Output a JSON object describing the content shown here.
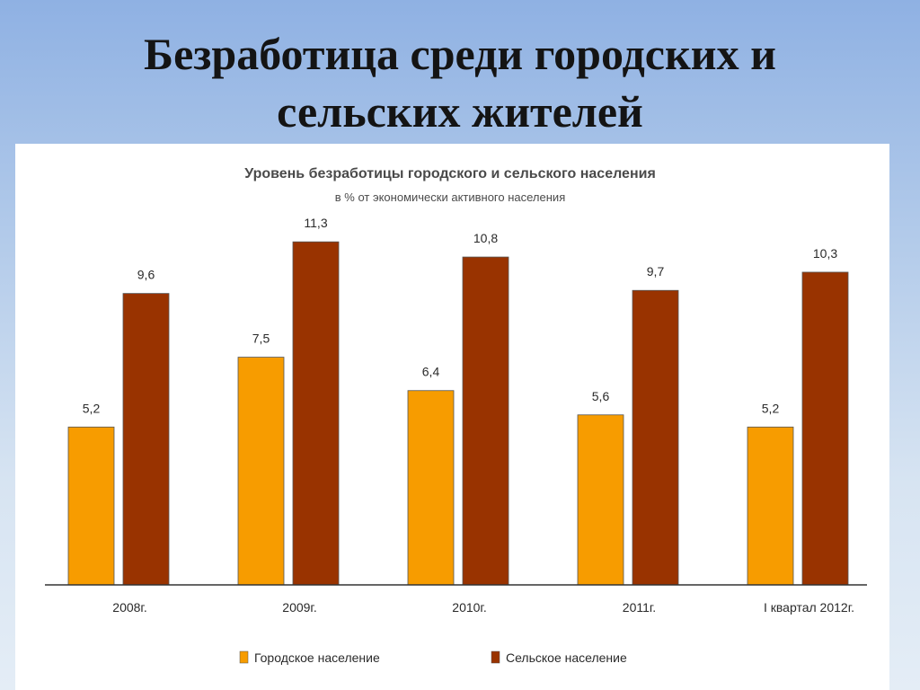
{
  "slide": {
    "title_line1": "Безработица среди городских и",
    "title_line2": "сельских жителей"
  },
  "chart_data": {
    "type": "bar",
    "title": "Уровень безработицы городского и сельского населения",
    "subtitle": "в % от экономически активного населения",
    "categories": [
      "2008г.",
      "2009г.",
      "2010г.",
      "2011г.",
      "I квартал 2012г."
    ],
    "series": [
      {
        "name": "Городское население",
        "color": "#f79c00",
        "values": [
          5.2,
          7.5,
          6.4,
          5.6,
          5.2
        ],
        "labels": [
          "5,2",
          "7,5",
          "6,4",
          "5,6",
          "5,2"
        ]
      },
      {
        "name": "Сельское население",
        "color": "#993300",
        "values": [
          9.6,
          11.3,
          10.8,
          9.7,
          10.3
        ],
        "labels": [
          "9,6",
          "11,3",
          "10,8",
          "9,7",
          "10,3"
        ]
      }
    ],
    "ylim": [
      0,
      12.4
    ],
    "grid": false,
    "legend_position": "bottom"
  }
}
